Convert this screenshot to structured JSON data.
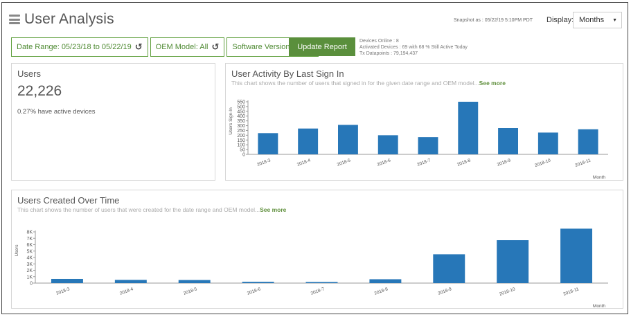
{
  "header": {
    "title": "User Analysis",
    "snapshot": "Snapshot as : 05/22/19 5:10PM PDT",
    "display_label": "Display:",
    "display_value": "Months"
  },
  "filters": {
    "date_range": "Date Range: 05/23/18 to 05/22/19",
    "oem_model": "OEM Model: All",
    "software_version": "Software Version: All",
    "update_button": "Update Report"
  },
  "stats": {
    "devices_online": "Devices Online : 8",
    "activated": "Activated Devices : 69 with 68 % Still Active Today",
    "datapoints": "Tx Datapoints : 79,194,437"
  },
  "users_card": {
    "title": "Users",
    "count": "22,226",
    "note": "0.27% have active devices"
  },
  "activity_card": {
    "title": "User Activity By Last Sign In",
    "description": "This chart shows the number of users that signed in for the given date range and OEM model...",
    "see_more": "See more"
  },
  "created_card": {
    "title": "Users Created Over Time",
    "description": "This chart shows the number of users that were created for the date range and OEM model...",
    "see_more": "See more"
  },
  "chart_data": [
    {
      "type": "bar",
      "categories": [
        "2018-3",
        "2018-4",
        "2018-5",
        "2018-6",
        "2018-7",
        "2018-8",
        "2018-9",
        "2018-10",
        "2018-11"
      ],
      "values": [
        222,
        270,
        308,
        200,
        180,
        550,
        275,
        228,
        262
      ],
      "xlabel": "Month",
      "ylabel": "Users Sign-In",
      "ylim": [
        0,
        550
      ],
      "yticks": [
        0,
        50,
        100,
        150,
        200,
        250,
        300,
        350,
        400,
        450,
        500,
        550
      ],
      "color": "#2777b8"
    },
    {
      "type": "bar",
      "categories": [
        "2018-3",
        "2018-4",
        "2018-5",
        "2018-6",
        "2018-7",
        "2018-8",
        "2018-9",
        "2018-10",
        "2018-11"
      ],
      "values": [
        650,
        500,
        480,
        200,
        170,
        600,
        4500,
        6700,
        8500
      ],
      "xlabel": "Month",
      "ylabel": "Users",
      "ylim": [
        0,
        8000
      ],
      "yticks": [
        0,
        1000,
        2000,
        3000,
        4000,
        5000,
        6000,
        7000,
        8000
      ],
      "ytick_labels": [
        "0",
        "1K",
        "2K",
        "3K",
        "4K",
        "5K",
        "6K",
        "7K",
        "8K"
      ],
      "color": "#2777b8"
    }
  ]
}
